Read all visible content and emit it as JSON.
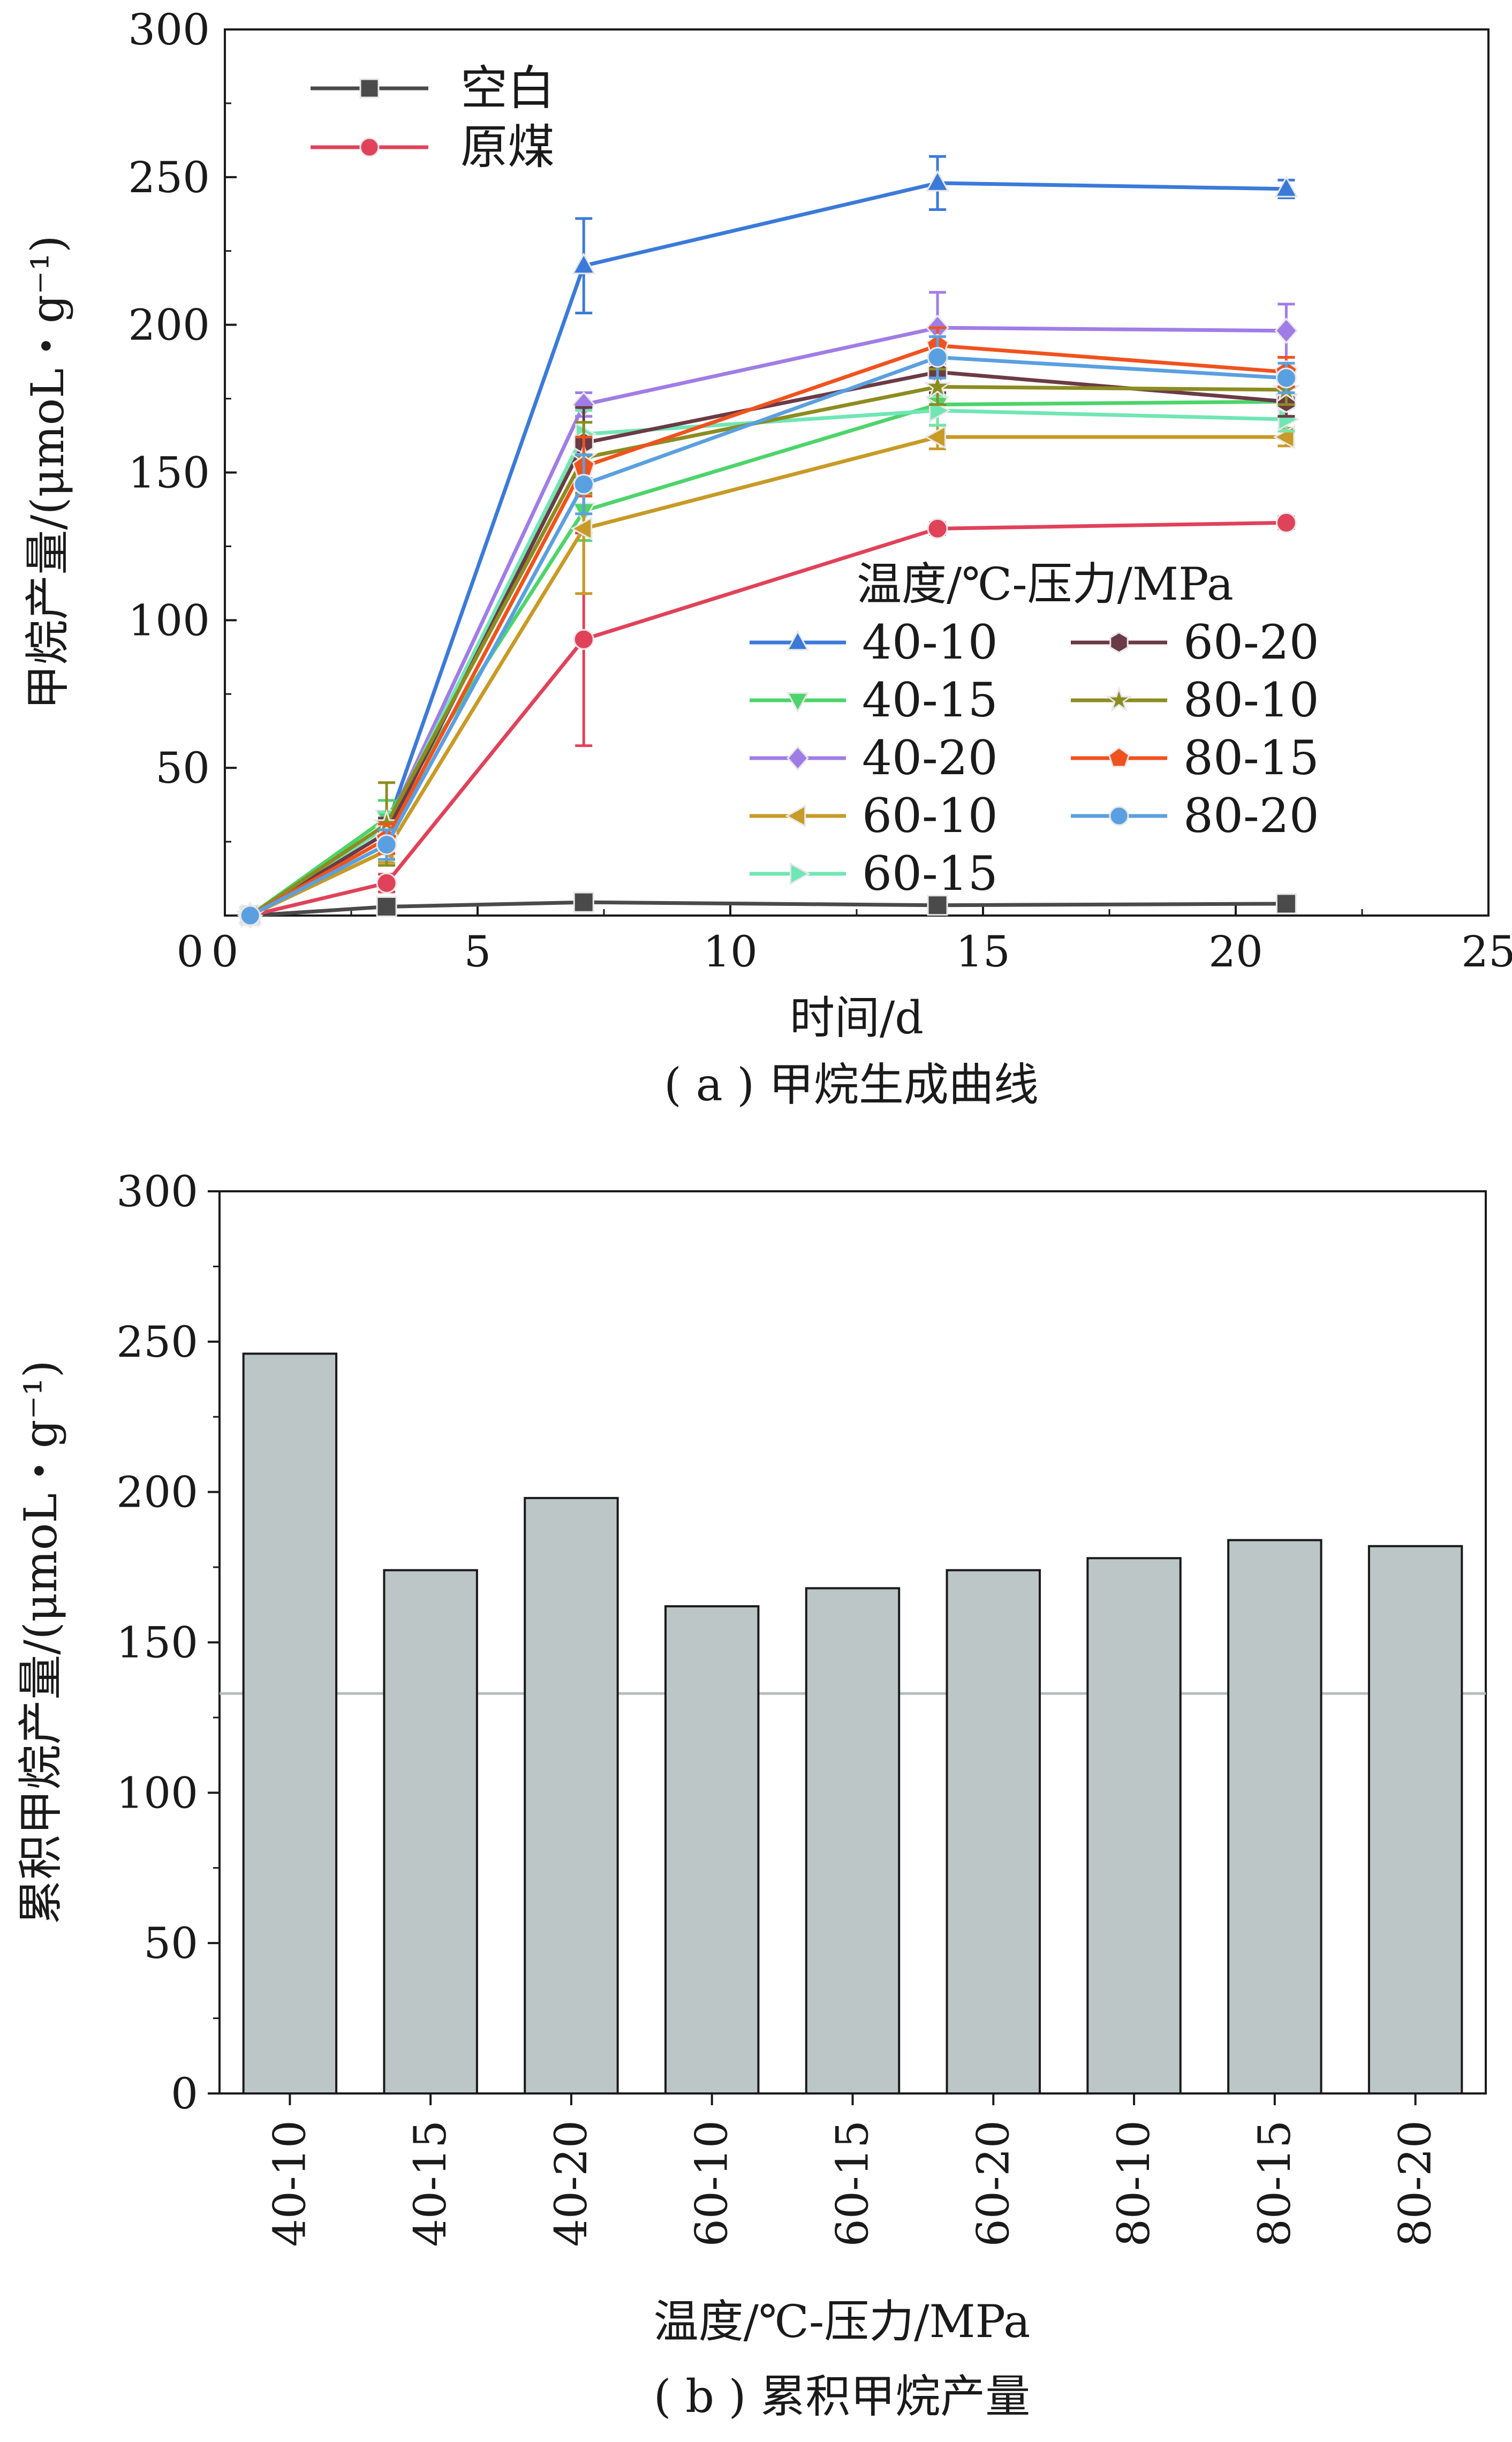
{
  "chart_data": [
    {
      "type": "line",
      "xlabel": "时间/d",
      "ylabel": "甲烷产量/(μmoL・g⁻¹)",
      "caption": "( a ) 甲烷生成曲线",
      "xlim": [
        0,
        25
      ],
      "ylim": [
        0,
        300
      ],
      "xticks": [
        0,
        5,
        10,
        15,
        20,
        25
      ],
      "yticks": [
        50,
        100,
        150,
        200,
        250,
        300
      ],
      "x_tick_labels": [
        "0",
        "5",
        "10",
        "15",
        "20",
        "25"
      ],
      "y_tick_labels": [
        "50",
        "100",
        "150",
        "200",
        "250",
        "300"
      ],
      "legend_title": "温度/℃-压力/MPa",
      "error_bars": true,
      "x": [
        0.5,
        3.2,
        7.1,
        14.1,
        21
      ],
      "series": [
        {
          "name": "空白",
          "color": "#4a4a4a",
          "marker": "square",
          "values": [
            0,
            3,
            4.5,
            3.5,
            4
          ],
          "err": [
            0,
            1,
            1,
            1,
            1.5
          ]
        },
        {
          "name": "原煤",
          "color": "#e0425a",
          "marker": "circle",
          "values": [
            0,
            11,
            93.5,
            131,
            133
          ],
          "err": [
            0,
            3,
            36,
            2,
            2
          ]
        },
        {
          "name": "40-10",
          "color": "#3b7ad9",
          "marker": "triangle-up",
          "values": [
            0,
            30,
            220,
            248,
            246
          ],
          "err": [
            0,
            5,
            16,
            9,
            3
          ]
        },
        {
          "name": "40-15",
          "color": "#4dd46a",
          "marker": "triangle-down",
          "values": [
            0,
            33,
            137,
            173,
            174
          ],
          "err": [
            0,
            6,
            10,
            7,
            5
          ]
        },
        {
          "name": "40-20",
          "color": "#a07de6",
          "marker": "diamond",
          "values": [
            0,
            30,
            173,
            199,
            198
          ],
          "err": [
            0,
            5,
            4,
            12,
            9
          ]
        },
        {
          "name": "60-10",
          "color": "#c89a26",
          "marker": "triangle-left",
          "values": [
            0,
            22,
            131,
            162,
            162
          ],
          "err": [
            0,
            4,
            22,
            4,
            3
          ]
        },
        {
          "name": "60-15",
          "color": "#70e6b4",
          "marker": "triangle-right",
          "values": [
            0,
            30,
            163,
            171,
            168
          ],
          "err": [
            0,
            5,
            8,
            5,
            4
          ]
        },
        {
          "name": "60-20",
          "color": "#6b3b45",
          "marker": "hexagon",
          "values": [
            0,
            28,
            160,
            184,
            174
          ],
          "err": [
            0,
            5,
            12,
            7,
            5
          ]
        },
        {
          "name": "80-10",
          "color": "#8c8c22",
          "marker": "star",
          "values": [
            0,
            31,
            155,
            179,
            178
          ],
          "err": [
            0,
            14,
            12,
            6,
            5
          ]
        },
        {
          "name": "80-15",
          "color": "#f0521e",
          "marker": "pentagon",
          "values": [
            0,
            26,
            152,
            193,
            184
          ],
          "err": [
            0,
            5,
            10,
            6,
            5
          ]
        },
        {
          "name": "80-20",
          "color": "#5aa0e0",
          "marker": "circle",
          "values": [
            0,
            24,
            146,
            189,
            182
          ],
          "err": [
            0,
            5,
            10,
            7,
            5
          ]
        }
      ]
    },
    {
      "type": "bar",
      "xlabel": "温度/℃-压力/MPa",
      "ylabel": "累积甲烷产量/(μmoL・g⁻¹)",
      "caption": "( b ) 累积甲烷产量",
      "ylim": [
        0,
        300
      ],
      "yticks": [
        0,
        50,
        100,
        150,
        200,
        250,
        300
      ],
      "y_tick_labels": [
        "0",
        "50",
        "100",
        "150",
        "200",
        "250",
        "300"
      ],
      "categories": [
        "40-10",
        "40-15",
        "40-20",
        "60-10",
        "60-15",
        "60-20",
        "80-10",
        "80-15",
        "80-20"
      ],
      "values": [
        246,
        174,
        198,
        162,
        168,
        174,
        178,
        184,
        182
      ],
      "reference_line": 133,
      "bar_color": "#bcc6c6",
      "reference_color": "#b5bdbd"
    }
  ]
}
